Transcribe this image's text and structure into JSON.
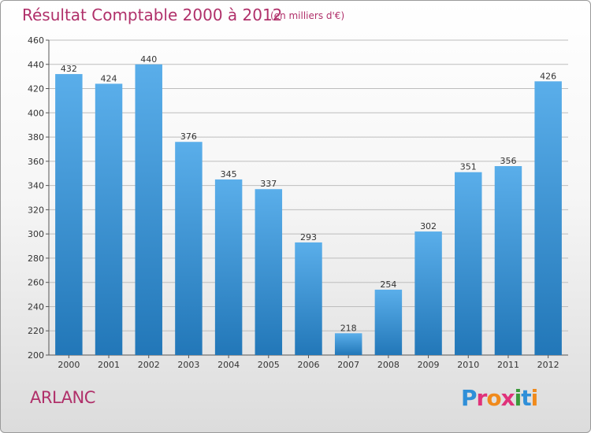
{
  "header": {
    "title": "Résultat Comptable 2000 à 2012",
    "subtitle": "(en milliers d'€)"
  },
  "footer": {
    "location": "ARLANC",
    "logo_letters": [
      "P",
      "r",
      "o",
      "x",
      "i",
      "t",
      "i"
    ],
    "logo_colors": [
      "#2f8fd8",
      "#e0327a",
      "#f08a1c",
      "#e0327a",
      "#3a9a3a",
      "#2f8fd8",
      "#f08a1c"
    ]
  },
  "colors": {
    "bar_top": "#5aaeea",
    "bar_bottom": "#2277b8",
    "grid": "#bdbdbd",
    "accent": "#b0306a"
  },
  "chart_data": {
    "type": "bar",
    "categories": [
      "2000",
      "2001",
      "2002",
      "2003",
      "2004",
      "2005",
      "2006",
      "2007",
      "2008",
      "2009",
      "2010",
      "2011",
      "2012"
    ],
    "values": [
      432,
      424,
      440,
      376,
      345,
      337,
      293,
      218,
      254,
      302,
      351,
      356,
      426
    ],
    "ylim": [
      200,
      460
    ],
    "yticks": [
      200,
      220,
      240,
      260,
      280,
      300,
      320,
      340,
      360,
      380,
      400,
      420,
      440,
      460
    ],
    "grid": true,
    "xlabel": "",
    "ylabel": ""
  }
}
